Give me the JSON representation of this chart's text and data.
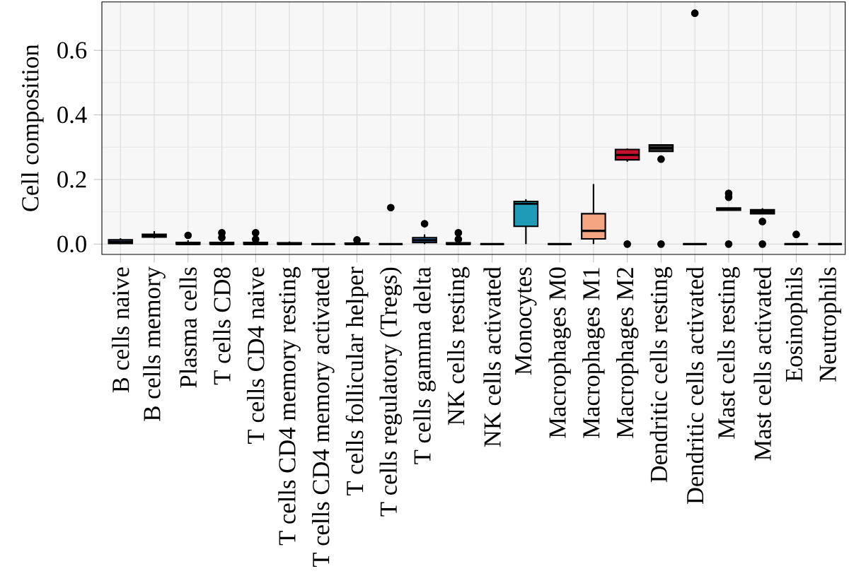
{
  "chart_data": {
    "type": "box",
    "ylabel": "Cell composition",
    "categories": [
      "B cells naive",
      "B cells memory",
      "Plasma cells",
      "T cells CD8",
      "T cells CD4 naive",
      "T cells CD4 memory resting",
      "T cells CD4 memory activated",
      "T cells follicular helper",
      "T cells regulatory (Tregs)",
      "T cells gamma delta",
      "NK cells resting",
      "NK cells activated",
      "Monocytes",
      "Macrophages M0",
      "Macrophages M1",
      "Macrophages M2",
      "Dendritic cells resting",
      "Dendritic cells activated",
      "Mast cells resting",
      "Mast cells activated",
      "Eosinophils",
      "Neutrophils"
    ],
    "boxes": [
      {
        "low": 0,
        "q1": 0.002,
        "median": 0.006,
        "q3": 0.013,
        "high": 0.018
      },
      {
        "low": 0.018,
        "q1": 0.022,
        "median": 0.027,
        "q3": 0.03,
        "high": 0.04
      },
      {
        "low": 0,
        "q1": 0,
        "median": 0,
        "q3": 0.005,
        "high": 0.012,
        "outliers": [
          0.027
        ]
      },
      {
        "low": 0,
        "q1": 0,
        "median": 0,
        "q3": 0.005,
        "high": 0.01,
        "outliers": [
          0.035,
          0.02
        ]
      },
      {
        "low": 0,
        "q1": 0,
        "median": 0,
        "q3": 0.005,
        "high": 0.01,
        "outliers": [
          0.035,
          0.015
        ]
      },
      {
        "low": 0,
        "q1": 0,
        "median": 0,
        "q3": 0.004,
        "high": 0.008
      },
      {
        "low": 0,
        "q1": 0,
        "median": 0,
        "q3": 0,
        "high": 0
      },
      {
        "low": 0,
        "q1": 0,
        "median": 0,
        "q3": 0.003,
        "high": 0.006,
        "outliers": [
          0.013
        ]
      },
      {
        "low": 0,
        "q1": 0,
        "median": 0,
        "q3": 0,
        "high": 0,
        "outliers": [
          0.113
        ]
      },
      {
        "low": 0,
        "q1": 0.005,
        "median": 0.012,
        "q3": 0.02,
        "high": 0.03,
        "outliers": [
          0.063
        ]
      },
      {
        "low": 0,
        "q1": 0,
        "median": 0,
        "q3": 0.004,
        "high": 0.008,
        "outliers": [
          0.035,
          0.015
        ]
      },
      {
        "low": 0,
        "q1": 0,
        "median": 0,
        "q3": 0,
        "high": 0
      },
      {
        "low": 0,
        "q1": 0.055,
        "median": 0.125,
        "q3": 0.132,
        "high": 0.139
      },
      {
        "low": 0,
        "q1": 0,
        "median": 0,
        "q3": 0,
        "high": 0
      },
      {
        "low": 0,
        "q1": 0.016,
        "median": 0.041,
        "q3": 0.094,
        "high": 0.186
      },
      {
        "low": 0.255,
        "q1": 0.261,
        "median": 0.276,
        "q3": 0.293,
        "high": 0.296,
        "outliers": [
          0
        ]
      },
      {
        "low": 0.287,
        "q1": 0.287,
        "median": 0.297,
        "q3": 0.307,
        "high": 0.307,
        "outliers": [
          0.263,
          0
        ]
      },
      {
        "low": 0,
        "q1": 0,
        "median": 0,
        "q3": 0,
        "high": 0,
        "outliers": [
          0.715
        ]
      },
      {
        "low": 0.105,
        "q1": 0.105,
        "median": 0.109,
        "q3": 0.112,
        "high": 0.112,
        "outliers": [
          0.157,
          0.145,
          0
        ]
      },
      {
        "low": 0.094,
        "q1": 0.094,
        "median": 0.1,
        "q3": 0.106,
        "high": 0.111,
        "outliers": [
          0.07,
          0
        ]
      },
      {
        "low": 0,
        "q1": 0,
        "median": 0,
        "q3": 0,
        "high": 0,
        "outliers": [
          0.03
        ]
      },
      {
        "low": 0,
        "q1": 0,
        "median": 0,
        "q3": 0,
        "high": 0
      }
    ],
    "colors": [
      "#2b4c7e",
      "#333333",
      "#333333",
      "#333333",
      "#333333",
      "#333333",
      "#000000",
      "#333333",
      "#000000",
      "#3a6ea5",
      "#333333",
      "#000000",
      "#1f9bb8",
      "#000000",
      "#f4a582",
      "#c8102e",
      "#333333",
      "#000000",
      "#333333",
      "#333333",
      "#000000",
      "#000000"
    ],
    "ylim": [
      -0.032,
      0.75
    ],
    "yticks": [
      {
        "value": 0,
        "label": "0.0"
      },
      {
        "value": 0.2,
        "label": "0.2"
      },
      {
        "value": 0.4,
        "label": "0.4"
      },
      {
        "value": 0.6,
        "label": "0.6"
      }
    ],
    "grid": true
  }
}
